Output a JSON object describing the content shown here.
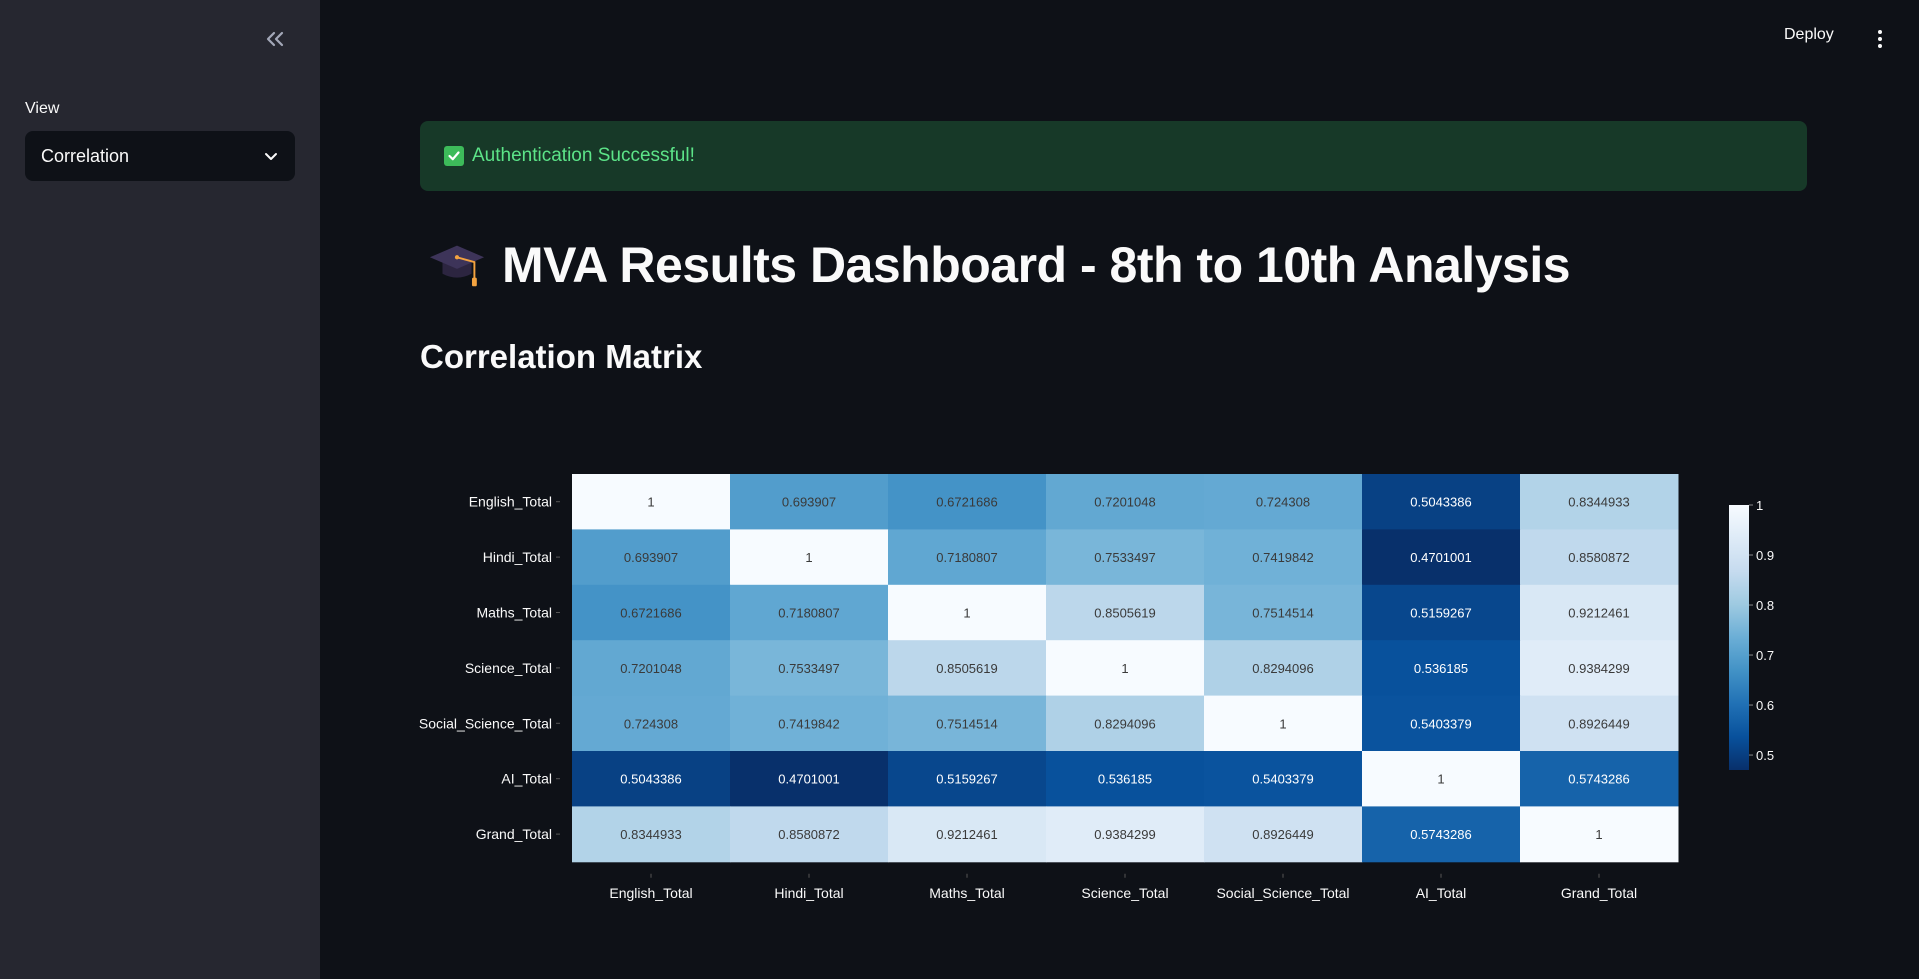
{
  "sidebar": {
    "view_label": "View",
    "view_selected": "Correlation"
  },
  "header": {
    "deploy_label": "Deploy"
  },
  "main": {
    "alert_text": "Authentication Successful!",
    "title": "MVA Results Dashboard - 8th to 10th Analysis",
    "subtitle": "Correlation Matrix"
  },
  "icons": {
    "collapse": "double-chevron-left-icon",
    "select": "chevron-down-icon",
    "menu": "kebab-menu-icon",
    "check": "check-box-icon",
    "title": "graduation-cap-icon"
  },
  "colors": {
    "alert_bg": "#173928",
    "alert_text": "#5ce488",
    "heat_low": "#08306b",
    "heat_high": "#f7fbff"
  },
  "chart_data": {
    "type": "heatmap",
    "x_labels": [
      "English_Total",
      "Hindi_Total",
      "Maths_Total",
      "Science_Total",
      "Social_Science_Total",
      "AI_Total",
      "Grand_Total"
    ],
    "y_labels": [
      "English_Total",
      "Hindi_Total",
      "Maths_Total",
      "Science_Total",
      "Social_Science_Total",
      "AI_Total",
      "Grand_Total"
    ],
    "values": [
      [
        1,
        0.693907,
        0.6721686,
        0.7201048,
        0.724308,
        0.5043386,
        0.8344933
      ],
      [
        0.693907,
        1,
        0.7180807,
        0.7533497,
        0.7419842,
        0.4701001,
        0.8580872
      ],
      [
        0.6721686,
        0.7180807,
        1,
        0.8505619,
        0.7514514,
        0.5159267,
        0.9212461
      ],
      [
        0.7201048,
        0.7533497,
        0.8505619,
        1,
        0.8294096,
        0.536185,
        0.9384299
      ],
      [
        0.724308,
        0.7419842,
        0.7514514,
        0.8294096,
        1,
        0.5403379,
        0.8926449
      ],
      [
        0.5043386,
        0.4701001,
        0.5159267,
        0.536185,
        0.5403379,
        1,
        0.5743286
      ],
      [
        0.8344933,
        0.8580872,
        0.9212461,
        0.9384299,
        0.8926449,
        0.5743286,
        1
      ]
    ],
    "colorscale": "Blues",
    "zmin": 0.4701001,
    "zmax": 1,
    "colorbar_ticks": [
      1,
      0.9,
      0.8,
      0.7,
      0.6,
      0.5
    ]
  }
}
